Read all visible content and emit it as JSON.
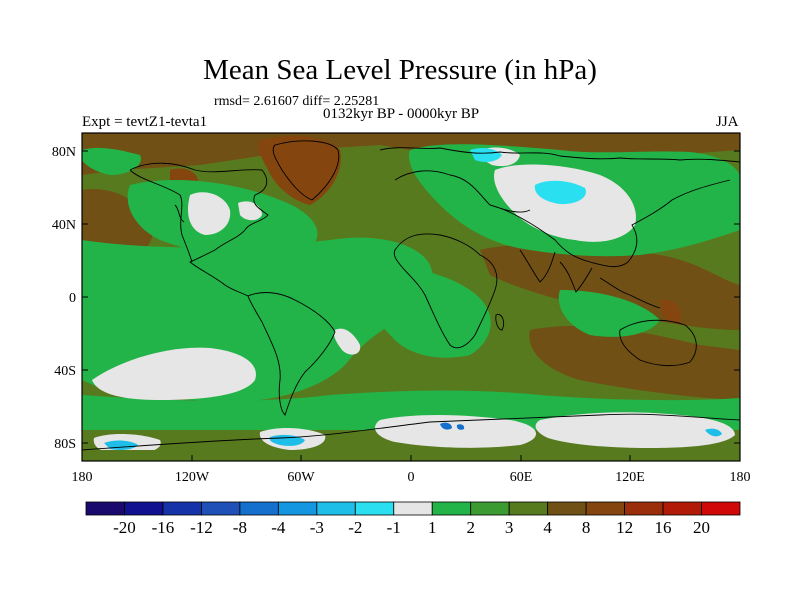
{
  "title": "Mean Sea Level Pressure (in hPa)",
  "stats_line": "rmsd= 2.61607 diff= 2.25281",
  "period": "0132kyr BP - 0000kyr BP",
  "experiment": "Expt = tevtZ1-tevta1",
  "season": "JJA",
  "lat_labels": [
    "80N",
    "40N",
    "0",
    "40S",
    "80S"
  ],
  "lon_labels": [
    "180",
    "120W",
    "60W",
    "0",
    "60E",
    "120E",
    "180"
  ],
  "colorbar": {
    "labels": [
      "-20",
      "-16",
      "-12",
      "-8",
      "-4",
      "-3",
      "-2",
      "-1",
      "1",
      "2",
      "3",
      "4",
      "8",
      "12",
      "16",
      "20"
    ],
    "colors": [
      "#1a0a6e",
      "#101090",
      "#1632a8",
      "#1e50b8",
      "#1470cc",
      "#1496e0",
      "#1ebee8",
      "#2ae0f0",
      "#e6e6e6",
      "#22b448",
      "#3c9a32",
      "#587a1e",
      "#705014",
      "#84460e",
      "#9a2e0a",
      "#b21a08",
      "#d00808"
    ]
  }
}
